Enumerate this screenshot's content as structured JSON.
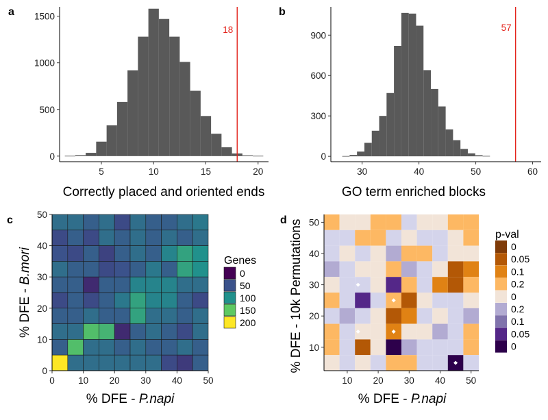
{
  "chart_data": [
    {
      "panel": "a",
      "type": "bar",
      "xlabel": "Correctly placed and oriented ends",
      "ylabel": "",
      "xlim": [
        1,
        21
      ],
      "ylim": [
        -60,
        1600
      ],
      "xticks": [
        5,
        10,
        15,
        20
      ],
      "yticks": [
        0,
        500,
        1000,
        1500
      ],
      "bin_width": 1,
      "bins_left": [
        1.5,
        2.5,
        3.5,
        4.5,
        5.5,
        6.5,
        7.5,
        8.5,
        9.5,
        10.5,
        11.5,
        12.5,
        13.5,
        14.5,
        15.5,
        16.5,
        17.5,
        18.5,
        19.5
      ],
      "values": [
        3,
        10,
        35,
        155,
        330,
        580,
        920,
        1280,
        1580,
        1470,
        1280,
        1010,
        700,
        430,
        240,
        95,
        28,
        8,
        3
      ],
      "observed": {
        "value": 18,
        "label": "18",
        "color": "#e4241c"
      },
      "bar_color": "#595959"
    },
    {
      "panel": "b",
      "type": "bar",
      "xlabel": "GO term enriched blocks",
      "ylabel": "",
      "xlim": [
        24.5,
        61.5
      ],
      "ylim": [
        -40,
        1110
      ],
      "xticks": [
        30,
        40,
        50,
        60
      ],
      "yticks": [
        0,
        300,
        600,
        900
      ],
      "bin_width": 1.3,
      "bins_left": [
        26.5,
        27.8,
        29.1,
        30.4,
        31.7,
        33.0,
        34.3,
        35.6,
        36.9,
        38.2,
        39.5,
        40.8,
        42.1,
        43.4,
        44.7,
        46.0,
        47.3,
        48.6,
        49.9,
        51.2
      ],
      "values": [
        2,
        10,
        35,
        100,
        190,
        300,
        470,
        820,
        1065,
        1060,
        970,
        640,
        500,
        370,
        200,
        120,
        55,
        22,
        8,
        3
      ],
      "observed": {
        "value": 57,
        "label": "57",
        "color": "#e4241c"
      },
      "bar_color": "#595959"
    },
    {
      "panel": "c",
      "type": "heatmap",
      "xlabel": "% DFE - ",
      "xlabel_italic": "P.napi",
      "ylabel": "% DFE - ",
      "ylabel_italic": "B.mori",
      "xlim": [
        0,
        50
      ],
      "ylim": [
        0,
        50
      ],
      "xticks": [
        0,
        10,
        20,
        30,
        40,
        50
      ],
      "yticks": [
        0,
        10,
        20,
        30,
        40,
        50
      ],
      "cell_size": 5,
      "legend": {
        "title": "Genes",
        "labels": [
          "0",
          "50",
          "100",
          "150",
          "200"
        ],
        "max": 200
      },
      "rows_top_to_bottom": [
        [
          72,
          72,
          60,
          72,
          45,
          72,
          60,
          60,
          72,
          80
        ],
        [
          45,
          60,
          45,
          72,
          60,
          72,
          60,
          72,
          60,
          72
        ],
        [
          50,
          45,
          60,
          40,
          60,
          72,
          60,
          90,
          115,
          100
        ],
        [
          72,
          60,
          60,
          45,
          50,
          60,
          80,
          60,
          115,
          100
        ],
        [
          60,
          60,
          25,
          60,
          60,
          90,
          90,
          90,
          72,
          72
        ],
        [
          45,
          60,
          45,
          60,
          80,
          115,
          90,
          90,
          60,
          45
        ],
        [
          60,
          60,
          72,
          60,
          60,
          115,
          72,
          72,
          60,
          72
        ],
        [
          72,
          72,
          140,
          130,
          25,
          60,
          72,
          60,
          45,
          72
        ],
        [
          60,
          140,
          72,
          72,
          60,
          72,
          60,
          60,
          72,
          60
        ],
        [
          200,
          72,
          72,
          72,
          72,
          72,
          72,
          45,
          35,
          60
        ]
      ]
    },
    {
      "panel": "d",
      "type": "heatmap",
      "xlabel": "% DFE - ",
      "xlabel_italic": "P.napi",
      "ylabel": "% DFE - 10k Permutations",
      "xlim": [
        2.5,
        52.5
      ],
      "ylim": [
        2.5,
        52.5
      ],
      "xticks": [
        10,
        20,
        30,
        40,
        50
      ],
      "yticks": [
        10,
        20,
        30,
        40,
        50
      ],
      "cell_size": 5,
      "legend": {
        "title": "p-val",
        "labels": [
          "0",
          "0.05",
          "0.1",
          "0.2",
          "0",
          "0.2",
          "0.1",
          "0.05",
          "0"
        ]
      },
      "palette": [
        "#7f3b08",
        "#b35806",
        "#e08214",
        "#fdb863",
        "#f2e4d8",
        "#d4d4eb",
        "#b2abd2",
        "#8073ac",
        "#542788",
        "#2d004b"
      ],
      "rows_top_to_bottom": [
        [
          3,
          4,
          4,
          3,
          3,
          5,
          4,
          4,
          3,
          3
        ],
        [
          5,
          5,
          3,
          3,
          5,
          4,
          5,
          5,
          4,
          3
        ],
        [
          5,
          4,
          5,
          4,
          6,
          3,
          3,
          5,
          4,
          4
        ],
        [
          6,
          5,
          4,
          4,
          3,
          6,
          5,
          4,
          1,
          2
        ],
        [
          4,
          5,
          5,
          4,
          8,
          3,
          5,
          2,
          1,
          3
        ],
        [
          3,
          5,
          8,
          5,
          3,
          1,
          4,
          5,
          5,
          4
        ],
        [
          5,
          6,
          5,
          4,
          1,
          2,
          5,
          4,
          5,
          6
        ],
        [
          3,
          5,
          4,
          4,
          2,
          4,
          4,
          6,
          5,
          3
        ],
        [
          3,
          5,
          1,
          4,
          9,
          6,
          5,
          5,
          5,
          3
        ],
        [
          4,
          5,
          4,
          5,
          3,
          3,
          5,
          5,
          9,
          5
        ]
      ],
      "markers": [
        [
          13.5,
          30
        ],
        [
          25,
          25
        ],
        [
          13.5,
          15
        ],
        [
          25,
          15
        ],
        [
          45,
          5
        ]
      ]
    }
  ]
}
